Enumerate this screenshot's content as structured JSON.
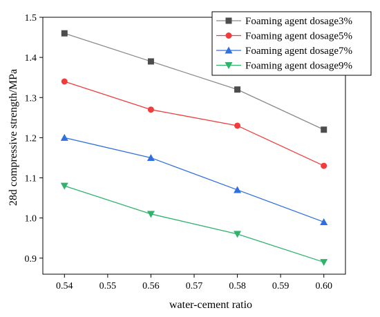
{
  "chart_data": {
    "type": "line",
    "title": "",
    "xlabel": "water-cement ratio",
    "ylabel": "28d compressive strength/MPa",
    "x": [
      0.54,
      0.56,
      0.58,
      0.6
    ],
    "xlim": [
      0.535,
      0.605
    ],
    "ylim": [
      0.86,
      1.5
    ],
    "xticks": [
      "0.54",
      "0.55",
      "0.56",
      "0.57",
      "0.58",
      "0.59",
      "0.60"
    ],
    "yticks": [
      "0.9",
      "1.0",
      "1.1",
      "1.2",
      "1.3",
      "1.4",
      "1.5"
    ],
    "grid": false,
    "legend_position": "top-right",
    "series": [
      {
        "name": "Foaming agent dosage3%",
        "values": [
          1.46,
          1.39,
          1.32,
          1.22
        ],
        "color": "#4d4d4d",
        "line_color": "#8a8a8a",
        "marker": "square"
      },
      {
        "name": "Foaming agent dosage5%",
        "values": [
          1.34,
          1.27,
          1.23,
          1.13
        ],
        "color": "#f03c3c",
        "line_color": "#f03c3c",
        "marker": "circle"
      },
      {
        "name": "Foaming agent dosage7%",
        "values": [
          1.2,
          1.15,
          1.07,
          0.99
        ],
        "color": "#2f6fe0",
        "line_color": "#2f6fe0",
        "marker": "triangle-up"
      },
      {
        "name": "Foaming agent dosage9%",
        "values": [
          1.08,
          1.01,
          0.96,
          0.89
        ],
        "color": "#2fb36a",
        "line_color": "#2fb36a",
        "marker": "triangle-down"
      }
    ]
  }
}
